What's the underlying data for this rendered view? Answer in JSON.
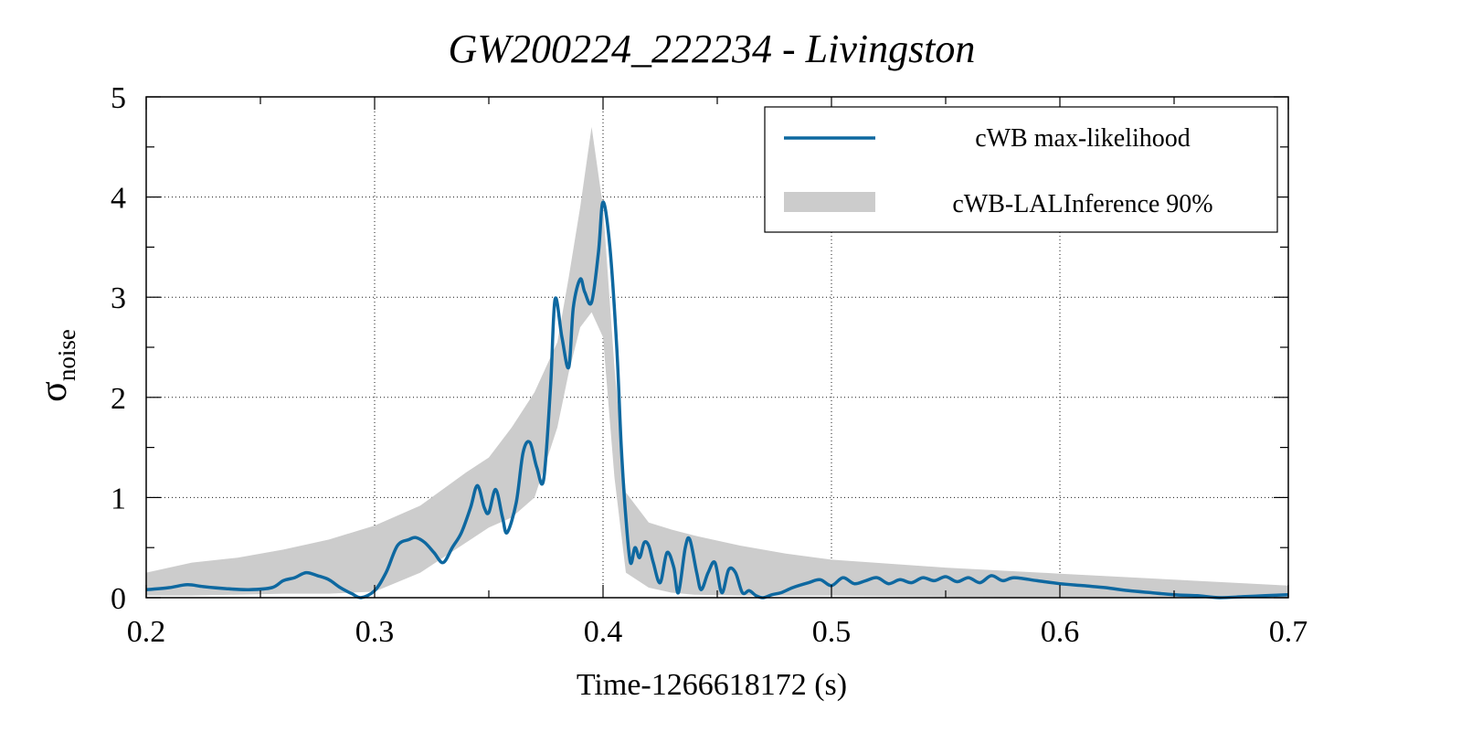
{
  "chart_data": {
    "type": "line",
    "title": "GW200224_222234 - Livingston",
    "xlabel": "Time-1266618172 (s)",
    "ylabel_main": "σ",
    "ylabel_sub": "noise",
    "xlim": [
      0.2,
      0.7
    ],
    "ylim": [
      0,
      5
    ],
    "xticks": [
      0.2,
      0.3,
      0.4,
      0.5,
      0.6,
      0.7
    ],
    "yticks": [
      0,
      1,
      2,
      3,
      4,
      5
    ],
    "xtick_labels": [
      "0.2",
      "0.3",
      "0.4",
      "0.5",
      "0.6",
      "0.7"
    ],
    "ytick_labels": [
      "0",
      "1",
      "2",
      "3",
      "4",
      "5"
    ],
    "grid": true,
    "legend_position": "top-right",
    "colors": {
      "line": "#0e68a0",
      "band": "#cccccc"
    },
    "series": [
      {
        "name": "cWB max-likelihood",
        "kind": "line",
        "x": [
          0.2,
          0.21,
          0.218,
          0.225,
          0.235,
          0.245,
          0.255,
          0.26,
          0.265,
          0.27,
          0.275,
          0.28,
          0.285,
          0.29,
          0.294,
          0.3,
          0.305,
          0.31,
          0.315,
          0.318,
          0.322,
          0.326,
          0.33,
          0.334,
          0.338,
          0.342,
          0.345,
          0.348,
          0.35,
          0.353,
          0.356,
          0.358,
          0.362,
          0.365,
          0.368,
          0.371,
          0.374,
          0.377,
          0.379,
          0.382,
          0.385,
          0.387,
          0.39,
          0.392,
          0.395,
          0.398,
          0.4,
          0.403,
          0.406,
          0.408,
          0.41,
          0.412,
          0.414,
          0.416,
          0.418,
          0.42,
          0.422,
          0.425,
          0.428,
          0.431,
          0.433,
          0.436,
          0.438,
          0.441,
          0.443,
          0.446,
          0.449,
          0.452,
          0.455,
          0.458,
          0.461,
          0.464,
          0.467,
          0.47,
          0.474,
          0.478,
          0.483,
          0.49,
          0.495,
          0.5,
          0.505,
          0.51,
          0.515,
          0.52,
          0.525,
          0.53,
          0.535,
          0.54,
          0.545,
          0.55,
          0.555,
          0.56,
          0.565,
          0.57,
          0.575,
          0.58,
          0.59,
          0.6,
          0.61,
          0.62,
          0.63,
          0.64,
          0.65,
          0.66,
          0.67,
          0.68,
          0.69,
          0.7
        ],
        "y": [
          0.08,
          0.1,
          0.13,
          0.11,
          0.09,
          0.08,
          0.1,
          0.17,
          0.2,
          0.25,
          0.22,
          0.18,
          0.1,
          0.04,
          0.0,
          0.07,
          0.25,
          0.52,
          0.58,
          0.6,
          0.55,
          0.45,
          0.35,
          0.5,
          0.65,
          0.9,
          1.12,
          0.9,
          0.85,
          1.08,
          0.8,
          0.65,
          0.95,
          1.45,
          1.55,
          1.3,
          1.18,
          2.1,
          2.98,
          2.6,
          2.3,
          2.9,
          3.18,
          3.05,
          2.95,
          3.45,
          3.95,
          3.5,
          2.5,
          1.5,
          0.8,
          0.35,
          0.5,
          0.4,
          0.55,
          0.52,
          0.35,
          0.15,
          0.45,
          0.3,
          0.05,
          0.5,
          0.58,
          0.25,
          0.08,
          0.25,
          0.35,
          0.05,
          0.28,
          0.25,
          0.05,
          0.07,
          0.02,
          0.0,
          0.03,
          0.05,
          0.1,
          0.15,
          0.18,
          0.12,
          0.2,
          0.14,
          0.17,
          0.2,
          0.14,
          0.18,
          0.15,
          0.2,
          0.17,
          0.21,
          0.16,
          0.2,
          0.15,
          0.22,
          0.17,
          0.2,
          0.17,
          0.14,
          0.12,
          0.1,
          0.07,
          0.05,
          0.03,
          0.02,
          0.0,
          0.01,
          0.02,
          0.03
        ]
      },
      {
        "name": "cWB-LALInference 90%",
        "kind": "band",
        "x": [
          0.2,
          0.22,
          0.24,
          0.26,
          0.28,
          0.3,
          0.32,
          0.34,
          0.35,
          0.36,
          0.37,
          0.38,
          0.385,
          0.39,
          0.395,
          0.4,
          0.405,
          0.41,
          0.42,
          0.43,
          0.44,
          0.46,
          0.48,
          0.5,
          0.55,
          0.6,
          0.65,
          0.7
        ],
        "upper": [
          0.25,
          0.35,
          0.4,
          0.48,
          0.58,
          0.72,
          0.92,
          1.25,
          1.4,
          1.7,
          2.05,
          2.55,
          3.2,
          3.9,
          4.7,
          3.9,
          2.3,
          1.05,
          0.75,
          0.68,
          0.62,
          0.52,
          0.44,
          0.38,
          0.3,
          0.24,
          0.18,
          0.12
        ],
        "lower": [
          0.02,
          0.02,
          0.03,
          0.04,
          0.04,
          0.06,
          0.25,
          0.55,
          0.7,
          0.8,
          1.0,
          1.7,
          2.25,
          2.7,
          2.85,
          2.6,
          1.2,
          0.25,
          0.1,
          0.05,
          0.03,
          0.02,
          0.02,
          0.02,
          0.01,
          0.0,
          0.0,
          0.0
        ]
      }
    ]
  }
}
